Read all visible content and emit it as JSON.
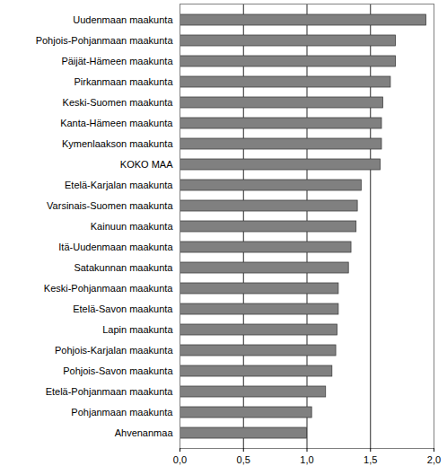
{
  "chart_data": {
    "type": "bar",
    "orientation": "horizontal",
    "categories": [
      "Uudenmaan maakunta",
      "Pohjois-Pohjanmaan maakunta",
      "Päijät-Hämeen maakunta",
      "Pirkanmaan maakunta",
      "Keski-Suomen maakunta",
      "Kanta-Hämeen maakunta",
      "Kymenlaakson maakunta",
      "KOKO MAA",
      "Etelä-Karjalan maakunta",
      "Varsinais-Suomen maakunta",
      "Kainuun maakunta",
      "Itä-Uudenmaan maakunta",
      "Satakunnan maakunta",
      "Keski-Pohjanmaan maakunta",
      "Etelä-Savon maakunta",
      "Lapin maakunta",
      "Pohjois-Karjalan maakunta",
      "Pohjois-Savon maakunta",
      "Etelä-Pohjanmaan maakunta",
      "Pohjanmaan maakunta",
      "Ahvenanmaa"
    ],
    "values": [
      1.94,
      1.7,
      1.7,
      1.66,
      1.6,
      1.59,
      1.59,
      1.58,
      1.43,
      1.4,
      1.39,
      1.35,
      1.33,
      1.25,
      1.25,
      1.24,
      1.23,
      1.2,
      1.15,
      1.04,
      1.0
    ],
    "color": "#808080",
    "xlim": [
      0,
      2
    ],
    "xticks": [
      {
        "value": 0,
        "label": "0,0"
      },
      {
        "value": 0.5,
        "label": "0,5"
      },
      {
        "value": 1,
        "label": "1,0"
      },
      {
        "value": 1.5,
        "label": "1,5"
      },
      {
        "value": 2,
        "label": "2,0"
      }
    ],
    "grid": true
  }
}
